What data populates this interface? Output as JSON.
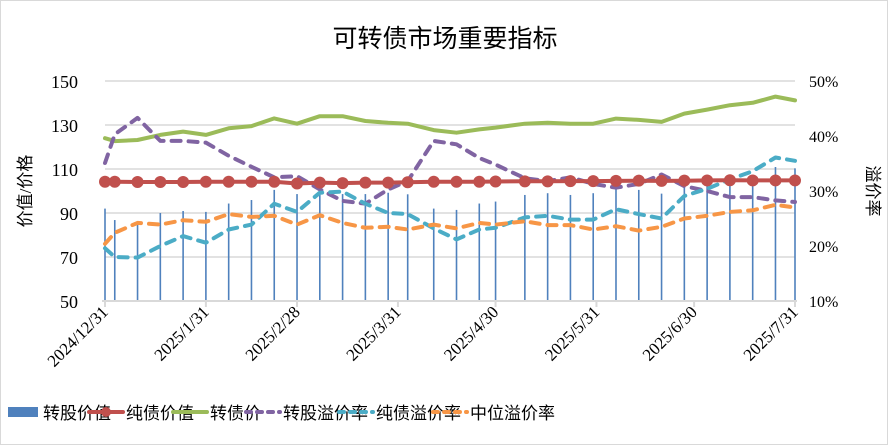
{
  "chart_data": {
    "type": "line",
    "title": "可转债市场重要指标",
    "ylabel_left": "价值/价格",
    "ylabel_right": "溢价率",
    "ylim_left": [
      50,
      150
    ],
    "yticks_left": [
      "150",
      "130",
      "110",
      "90",
      "70",
      "50"
    ],
    "ylim_right": [
      0.1,
      0.5
    ],
    "yticks_right": [
      "50%",
      "40%",
      "30%",
      "20%",
      "10%"
    ],
    "xlim": [
      "2024-12-31",
      "2025-07-31"
    ],
    "xticks": [
      "2024/12/31",
      "2025/1/31",
      "2025/2/28",
      "2025/3/31",
      "2025/4/30",
      "2025/5/31",
      "2025/6/30",
      "2025/7/31"
    ],
    "grid": "horizontal",
    "legend_position": "bottom",
    "x": [
      "2024-12-31",
      "2025-01-03",
      "2025-01-10",
      "2025-01-17",
      "2025-01-24",
      "2025-01-31",
      "2025-02-07",
      "2025-02-14",
      "2025-02-21",
      "2025-02-28",
      "2025-03-07",
      "2025-03-14",
      "2025-03-21",
      "2025-03-28",
      "2025-04-03",
      "2025-04-11",
      "2025-04-18",
      "2025-04-25",
      "2025-04-30",
      "2025-05-09",
      "2025-05-16",
      "2025-05-23",
      "2025-05-30",
      "2025-06-06",
      "2025-06-13",
      "2025-06-20",
      "2025-06-27",
      "2025-07-04",
      "2025-07-11",
      "2025-07-18",
      "2025-07-25",
      "2025-07-31"
    ],
    "series": [
      {
        "name": "转股价值",
        "type": "bar",
        "axis": "left",
        "color": "#4f81bd",
        "values": [
          92,
          86.8,
          84.8,
          90,
          90.9,
          90.5,
          94.3,
          95.9,
          100.5,
          98.6,
          100,
          98.6,
          98.6,
          99.2,
          98.5,
          92,
          91.4,
          94.3,
          95.2,
          98.2,
          99,
          98.2,
          99,
          101.5,
          100.5,
          98.8,
          103,
          105.3,
          103.8,
          104,
          110.9,
          110.3
        ]
      },
      {
        "name": "纯债价值",
        "type": "line-marker",
        "axis": "left",
        "color": "#c0504d",
        "values": [
          104.2,
          104.2,
          104.1,
          104.1,
          104.1,
          104.2,
          104.2,
          104.2,
          104.2,
          103.4,
          103.8,
          103.6,
          103.8,
          103.8,
          104,
          104.2,
          104.2,
          104.2,
          104.3,
          104.4,
          104.4,
          104.5,
          104.5,
          104.6,
          104.7,
          104.6,
          104.7,
          104.8,
          104.9,
          104.8,
          104.8,
          104.8
        ]
      },
      {
        "name": "转债价",
        "type": "line",
        "axis": "left",
        "color": "#9bbb59",
        "values": [
          124,
          122.7,
          123.2,
          125.5,
          127,
          125.5,
          128.5,
          129.5,
          133,
          130.6,
          134,
          134,
          131.8,
          131,
          130.6,
          127.7,
          126.5,
          128,
          128.8,
          130.6,
          131,
          130.6,
          130.6,
          132.9,
          132.3,
          131.4,
          135.2,
          137,
          139,
          140.1,
          142.9,
          141.2
        ]
      },
      {
        "name": "转股溢价率",
        "type": "dashed",
        "axis": "right",
        "color": "#8064a2",
        "values": [
          0.351,
          0.403,
          0.433,
          0.391,
          0.391,
          0.388,
          0.364,
          0.344,
          0.325,
          0.327,
          0.303,
          0.282,
          0.277,
          0.303,
          0.318,
          0.391,
          0.385,
          0.36,
          0.348,
          0.323,
          0.318,
          0.325,
          0.313,
          0.306,
          0.313,
          0.33,
          0.309,
          0.3,
          0.289,
          0.289,
          0.283,
          0.28
        ]
      },
      {
        "name": "纯债溢价率",
        "type": "dashed",
        "axis": "right",
        "color": "#4bacc6",
        "values": [
          0.196,
          0.18,
          0.179,
          0.2,
          0.218,
          0.206,
          0.23,
          0.239,
          0.277,
          0.262,
          0.297,
          0.299,
          0.277,
          0.26,
          0.258,
          0.232,
          0.212,
          0.23,
          0.233,
          0.252,
          0.255,
          0.248,
          0.248,
          0.267,
          0.258,
          0.25,
          0.291,
          0.304,
          0.321,
          0.336,
          0.361,
          0.355
        ]
      },
      {
        "name": "中位溢价率",
        "type": "dashed",
        "axis": "right",
        "color": "#f79646",
        "values": [
          0.204,
          0.224,
          0.242,
          0.239,
          0.247,
          0.244,
          0.258,
          0.253,
          0.255,
          0.239,
          0.256,
          0.242,
          0.233,
          0.235,
          0.23,
          0.239,
          0.232,
          0.242,
          0.239,
          0.245,
          0.238,
          0.238,
          0.23,
          0.236,
          0.228,
          0.235,
          0.25,
          0.255,
          0.262,
          0.265,
          0.275,
          0.27
        ]
      }
    ]
  }
}
